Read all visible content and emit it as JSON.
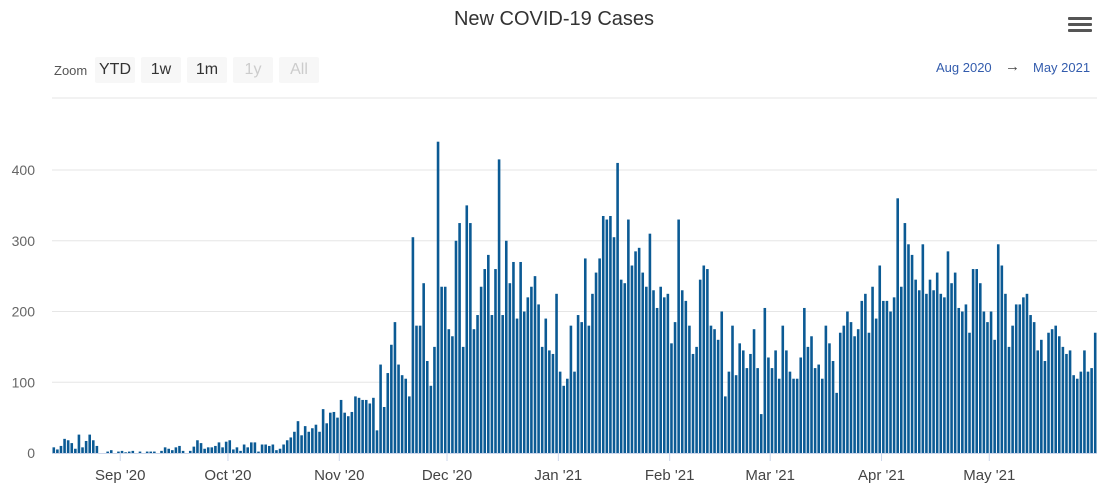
{
  "title": "New COVID-19 Cases",
  "menu": {
    "icon": "hamburger-menu-icon"
  },
  "zoom": {
    "label": "Zoom",
    "buttons": [
      {
        "label": "YTD",
        "enabled": true
      },
      {
        "label": "1w",
        "enabled": true
      },
      {
        "label": "1m",
        "enabled": true
      },
      {
        "label": "1y",
        "enabled": false
      },
      {
        "label": "All",
        "enabled": false
      }
    ]
  },
  "range": {
    "from": "Aug 2020",
    "arrow": "→",
    "to": "May 2021"
  },
  "colors": {
    "bar": "#0b5a94",
    "grid": "#e6e6e6",
    "axis": "#ccd6eb"
  },
  "chart_data": {
    "type": "bar",
    "title": "New COVID-19 Cases",
    "xlabel": "",
    "ylabel": "",
    "ylim": [
      0,
      450
    ],
    "yticks": [
      0,
      100,
      200,
      300,
      400
    ],
    "start_date": "2020-08-13",
    "xticks": [
      {
        "label": "Sep '20",
        "index": 19
      },
      {
        "label": "Oct '20",
        "index": 49
      },
      {
        "label": "Nov '20",
        "index": 80
      },
      {
        "label": "Dec '20",
        "index": 110
      },
      {
        "label": "Jan '21",
        "index": 141
      },
      {
        "label": "Feb '21",
        "index": 172
      },
      {
        "label": "Mar '21",
        "index": 200
      },
      {
        "label": "Apr '21",
        "index": 231
      },
      {
        "label": "May '21",
        "index": 261
      }
    ],
    "values": [
      8,
      5,
      10,
      20,
      18,
      14,
      6,
      26,
      8,
      17,
      26,
      18,
      10,
      0,
      0,
      2,
      4,
      0,
      2,
      3,
      1,
      2,
      3,
      0,
      2,
      0,
      2,
      2,
      2,
      0,
      3,
      8,
      6,
      4,
      8,
      10,
      3,
      0,
      3,
      9,
      18,
      14,
      6,
      8,
      8,
      10,
      15,
      8,
      16,
      18,
      5,
      8,
      3,
      12,
      8,
      15,
      15,
      2,
      12,
      12,
      10,
      12,
      4,
      6,
      12,
      18,
      22,
      30,
      45,
      25,
      38,
      30,
      35,
      40,
      30,
      62,
      42,
      57,
      58,
      50,
      75,
      57,
      52,
      58,
      80,
      78,
      75,
      75,
      70,
      78,
      32,
      125,
      65,
      113,
      153,
      185,
      125,
      110,
      105,
      80,
      305,
      180,
      180,
      240,
      130,
      95,
      150,
      440,
      235,
      235,
      175,
      165,
      300,
      325,
      150,
      350,
      325,
      175,
      195,
      235,
      260,
      280,
      195,
      260,
      415,
      195,
      300,
      240,
      270,
      190,
      270,
      200,
      220,
      235,
      250,
      210,
      150,
      190,
      145,
      140,
      225,
      115,
      95,
      105,
      180,
      115,
      195,
      185,
      275,
      180,
      225,
      255,
      275,
      335,
      330,
      335,
      305,
      410,
      245,
      240,
      330,
      265,
      285,
      290,
      255,
      235,
      310,
      230,
      205,
      235,
      220,
      225,
      155,
      185,
      330,
      230,
      215,
      180,
      140,
      150,
      245,
      265,
      260,
      180,
      175,
      160,
      200,
      80,
      115,
      180,
      110,
      155,
      145,
      120,
      140,
      175,
      120,
      55,
      205,
      135,
      120,
      145,
      105,
      180,
      145,
      115,
      105,
      105,
      135,
      205,
      150,
      165,
      120,
      125,
      105,
      180,
      155,
      130,
      85,
      170,
      180,
      200,
      185,
      165,
      175,
      215,
      225,
      170,
      235,
      190,
      265,
      215,
      215,
      200,
      220,
      360,
      235,
      325,
      295,
      280,
      245,
      230,
      295,
      225,
      245,
      230,
      255,
      225,
      220,
      285,
      240,
      255,
      205,
      200,
      210,
      170,
      260,
      260,
      240,
      200,
      185,
      200,
      160,
      295,
      265,
      225,
      150,
      180,
      210,
      210,
      220,
      225,
      195,
      185,
      145,
      160,
      130,
      170,
      175,
      180,
      165,
      150,
      140,
      145,
      110,
      105,
      115,
      145,
      115,
      120,
      170
    ]
  }
}
